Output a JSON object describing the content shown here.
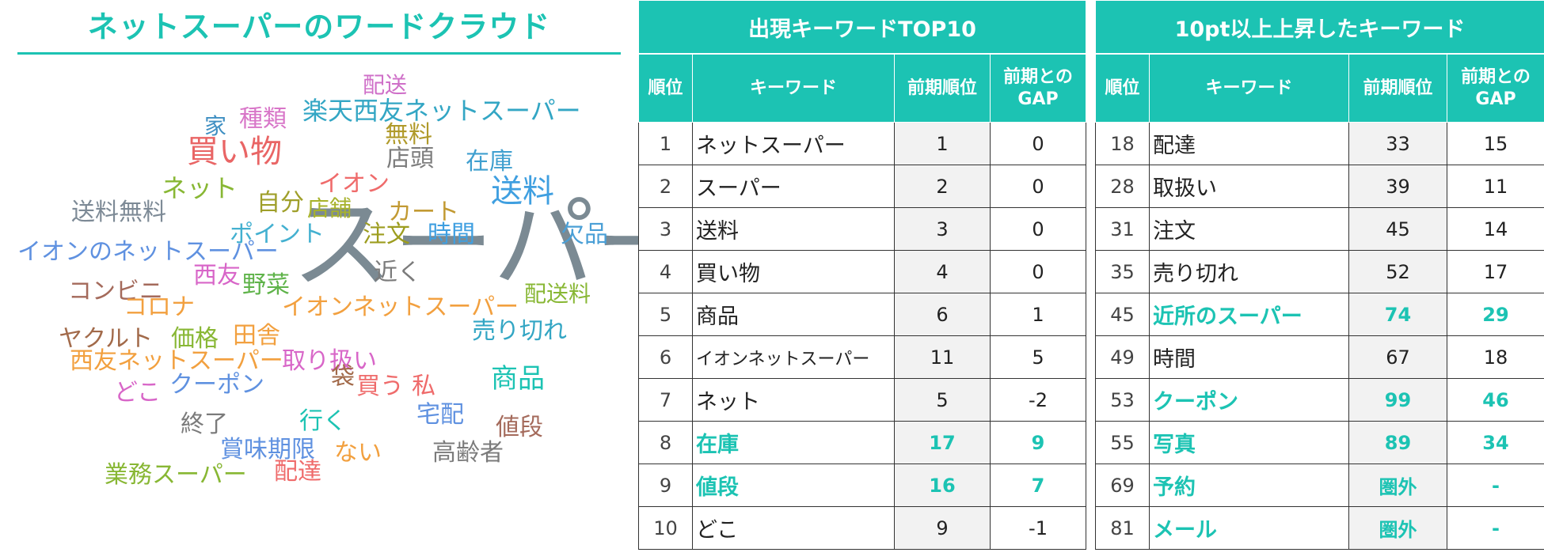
{
  "colors": {
    "accent": "#1cc3b3",
    "header_text": "#ffffff",
    "prev_col_bg": "#f2f2f2"
  },
  "cloud": {
    "title": "ネットスーパーのワードクラウド",
    "words": [
      {
        "text": "スーパー",
        "color": "#7b8a93"
      },
      {
        "text": "配送",
        "color": "#cf6fc8"
      },
      {
        "text": "楽天西友ネットスーパー",
        "color": "#33a6c4"
      },
      {
        "text": "家",
        "color": "#3f8fc2"
      },
      {
        "text": "種類",
        "color": "#d876c8"
      },
      {
        "text": "無料",
        "color": "#b09a2a"
      },
      {
        "text": "買い物",
        "color": "#e96565"
      },
      {
        "text": "店頭",
        "color": "#7d7d7d"
      },
      {
        "text": "在庫",
        "color": "#3f9fcf"
      },
      {
        "text": "送料",
        "color": "#3f9fe0"
      },
      {
        "text": "ネット",
        "color": "#88b734"
      },
      {
        "text": "イオン",
        "color": "#ef6b6b"
      },
      {
        "text": "自分",
        "color": "#9f9f2a"
      },
      {
        "text": "店舗",
        "color": "#a7b22b"
      },
      {
        "text": "カート",
        "color": "#c29a33"
      },
      {
        "text": "送料無料",
        "color": "#7d8a96"
      },
      {
        "text": "ポイント",
        "color": "#43b0d0"
      },
      {
        "text": "注文",
        "color": "#9d9d1f"
      },
      {
        "text": "時間",
        "color": "#3f9fe0"
      },
      {
        "text": "欠品",
        "color": "#4a9fd6"
      },
      {
        "text": "イオンのネットスーパー",
        "color": "#5f91e0"
      },
      {
        "text": "西友",
        "color": "#d866c8"
      },
      {
        "text": "近く",
        "color": "#7b7b7b"
      },
      {
        "text": "野菜",
        "color": "#5fb34a"
      },
      {
        "text": "コンビニ",
        "color": "#a46a5b"
      },
      {
        "text": "配送料",
        "color": "#88b734"
      },
      {
        "text": "コロナ",
        "color": "#f2a03f"
      },
      {
        "text": "イオンネットスーパー",
        "color": "#f2a03f"
      },
      {
        "text": "ヤクルト",
        "color": "#a26a4a"
      },
      {
        "text": "価格",
        "color": "#88b734"
      },
      {
        "text": "田舎",
        "color": "#f2a03f"
      },
      {
        "text": "売り切れ",
        "color": "#33a6c4"
      },
      {
        "text": "西友ネットスーパー",
        "color": "#f2a03f"
      },
      {
        "text": "取り扱い",
        "color": "#d866c8"
      },
      {
        "text": "袋",
        "color": "#a26a4a"
      },
      {
        "text": "商品",
        "color": "#1cc3b3"
      },
      {
        "text": "買う",
        "color": "#ef6b6b"
      },
      {
        "text": "私",
        "color": "#ef6b6b"
      },
      {
        "text": "どこ",
        "color": "#d866c8"
      },
      {
        "text": "クーポン",
        "color": "#5f91e0"
      },
      {
        "text": "宅配",
        "color": "#5f91e0"
      },
      {
        "text": "終了",
        "color": "#7b7b7b"
      },
      {
        "text": "行く",
        "color": "#1cc3b3"
      },
      {
        "text": "値段",
        "color": "#a46a5b"
      },
      {
        "text": "賞味期限",
        "color": "#5f91e0"
      },
      {
        "text": "ない",
        "color": "#f2a03f"
      },
      {
        "text": "高齢者",
        "color": "#7b7b7b"
      },
      {
        "text": "業務スーパー",
        "color": "#88b734"
      },
      {
        "text": "配達",
        "color": "#ef6b6b"
      }
    ]
  },
  "top10": {
    "caption": "出現キーワードTOP10",
    "headers": {
      "rank": "順位",
      "keyword": "キーワード",
      "prev": "前期順位",
      "gap": "前期との\nGAP"
    },
    "rows": [
      {
        "rank": "1",
        "keyword": "ネットスーパー",
        "prev": "1",
        "gap": "0"
      },
      {
        "rank": "2",
        "keyword": "スーパー",
        "prev": "2",
        "gap": "0"
      },
      {
        "rank": "3",
        "keyword": "送料",
        "prev": "3",
        "gap": "0"
      },
      {
        "rank": "4",
        "keyword": "買い物",
        "prev": "4",
        "gap": "0"
      },
      {
        "rank": "5",
        "keyword": "商品",
        "prev": "6",
        "gap": "1"
      },
      {
        "rank": "6",
        "keyword": "イオンネットスーパー",
        "prev": "11",
        "gap": "5"
      },
      {
        "rank": "7",
        "keyword": "ネット",
        "prev": "5",
        "gap": "-2"
      },
      {
        "rank": "8",
        "keyword": "在庫",
        "prev": "17",
        "gap": "9",
        "highlight": true
      },
      {
        "rank": "9",
        "keyword": "値段",
        "prev": "16",
        "gap": "7",
        "highlight": true
      },
      {
        "rank": "10",
        "keyword": "どこ",
        "prev": "9",
        "gap": "-1"
      }
    ]
  },
  "rise": {
    "caption": "10pt以上上昇したキーワード",
    "headers": {
      "rank": "順位",
      "keyword": "キーワード",
      "prev": "前期順位",
      "gap": "前期との\nGAP"
    },
    "rows": [
      {
        "rank": "18",
        "keyword": "配達",
        "prev": "33",
        "gap": "15"
      },
      {
        "rank": "28",
        "keyword": "取扱い",
        "prev": "39",
        "gap": "11"
      },
      {
        "rank": "31",
        "keyword": "注文",
        "prev": "45",
        "gap": "14"
      },
      {
        "rank": "35",
        "keyword": "売り切れ",
        "prev": "52",
        "gap": "17"
      },
      {
        "rank": "45",
        "keyword": "近所のスーパー",
        "prev": "74",
        "gap": "29",
        "highlight": true
      },
      {
        "rank": "49",
        "keyword": "時間",
        "prev": "67",
        "gap": "18"
      },
      {
        "rank": "53",
        "keyword": "クーポン",
        "prev": "99",
        "gap": "46",
        "highlight": true
      },
      {
        "rank": "55",
        "keyword": "写真",
        "prev": "89",
        "gap": "34",
        "highlight": true
      },
      {
        "rank": "69",
        "keyword": "予約",
        "prev": "圏外",
        "gap": "-",
        "highlight": true
      },
      {
        "rank": "81",
        "keyword": "メール",
        "prev": "圏外",
        "gap": "-",
        "highlight": true
      }
    ]
  }
}
